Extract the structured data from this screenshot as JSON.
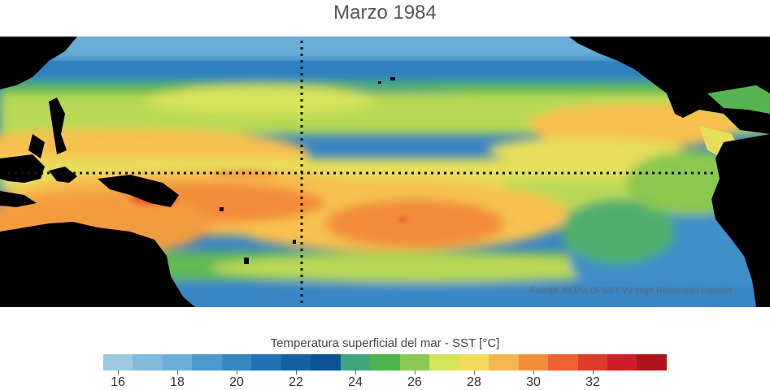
{
  "title": "Marzo 1984",
  "map": {
    "region": "Tropical Pacific Ocean",
    "source_text": "Fuente: NOAA OI SST V2 High Resolution Dataset",
    "land_color": "#000000",
    "reference_lines": [
      "equator-dotted-line",
      "dateline-dotted-line"
    ]
  },
  "legend": {
    "title": "Temperatura superficial del mar - SST  [°C]",
    "tick_labels": [
      "16",
      "18",
      "20",
      "22",
      "24",
      "26",
      "28",
      "30",
      "32"
    ],
    "colors": [
      "#9ecae1",
      "#82b9dc",
      "#6baed6",
      "#4e9acb",
      "#3787c0",
      "#2171b5",
      "#1461a2",
      "#0b5394",
      "#41a67d",
      "#4db34d",
      "#8cc84f",
      "#d4e35a",
      "#f2db5a",
      "#f6b54f",
      "#f48d3a",
      "#ee6130",
      "#de3b2a",
      "#cc1f28",
      "#b0141d"
    ]
  }
}
